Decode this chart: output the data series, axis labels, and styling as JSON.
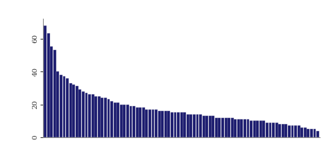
{
  "values": [
    68,
    63,
    55,
    53,
    40,
    38,
    37,
    36,
    33,
    32,
    31,
    29,
    28,
    27,
    26,
    26,
    25,
    25,
    24,
    24,
    23,
    22,
    21,
    21,
    20,
    20,
    20,
    19,
    19,
    18,
    18,
    18,
    17,
    17,
    17,
    17,
    16,
    16,
    16,
    16,
    15,
    15,
    15,
    15,
    15,
    14,
    14,
    14,
    14,
    14,
    13,
    13,
    13,
    13,
    12,
    12,
    12,
    12,
    12,
    12,
    11,
    11,
    11,
    11,
    11,
    10,
    10,
    10,
    10,
    10,
    9,
    9,
    9,
    9,
    8,
    8,
    8,
    7,
    7,
    7,
    7,
    6,
    6,
    5,
    5,
    5,
    4
  ],
  "bar_color": "#1a1a6e",
  "bar_edge_color": "#9999bb",
  "bar_edge_width": 0.3,
  "background_color": "#ffffff",
  "yticks": [
    0,
    20,
    40,
    60
  ],
  "ylim": [
    0,
    72
  ],
  "tick_fontsize": 7.5
}
